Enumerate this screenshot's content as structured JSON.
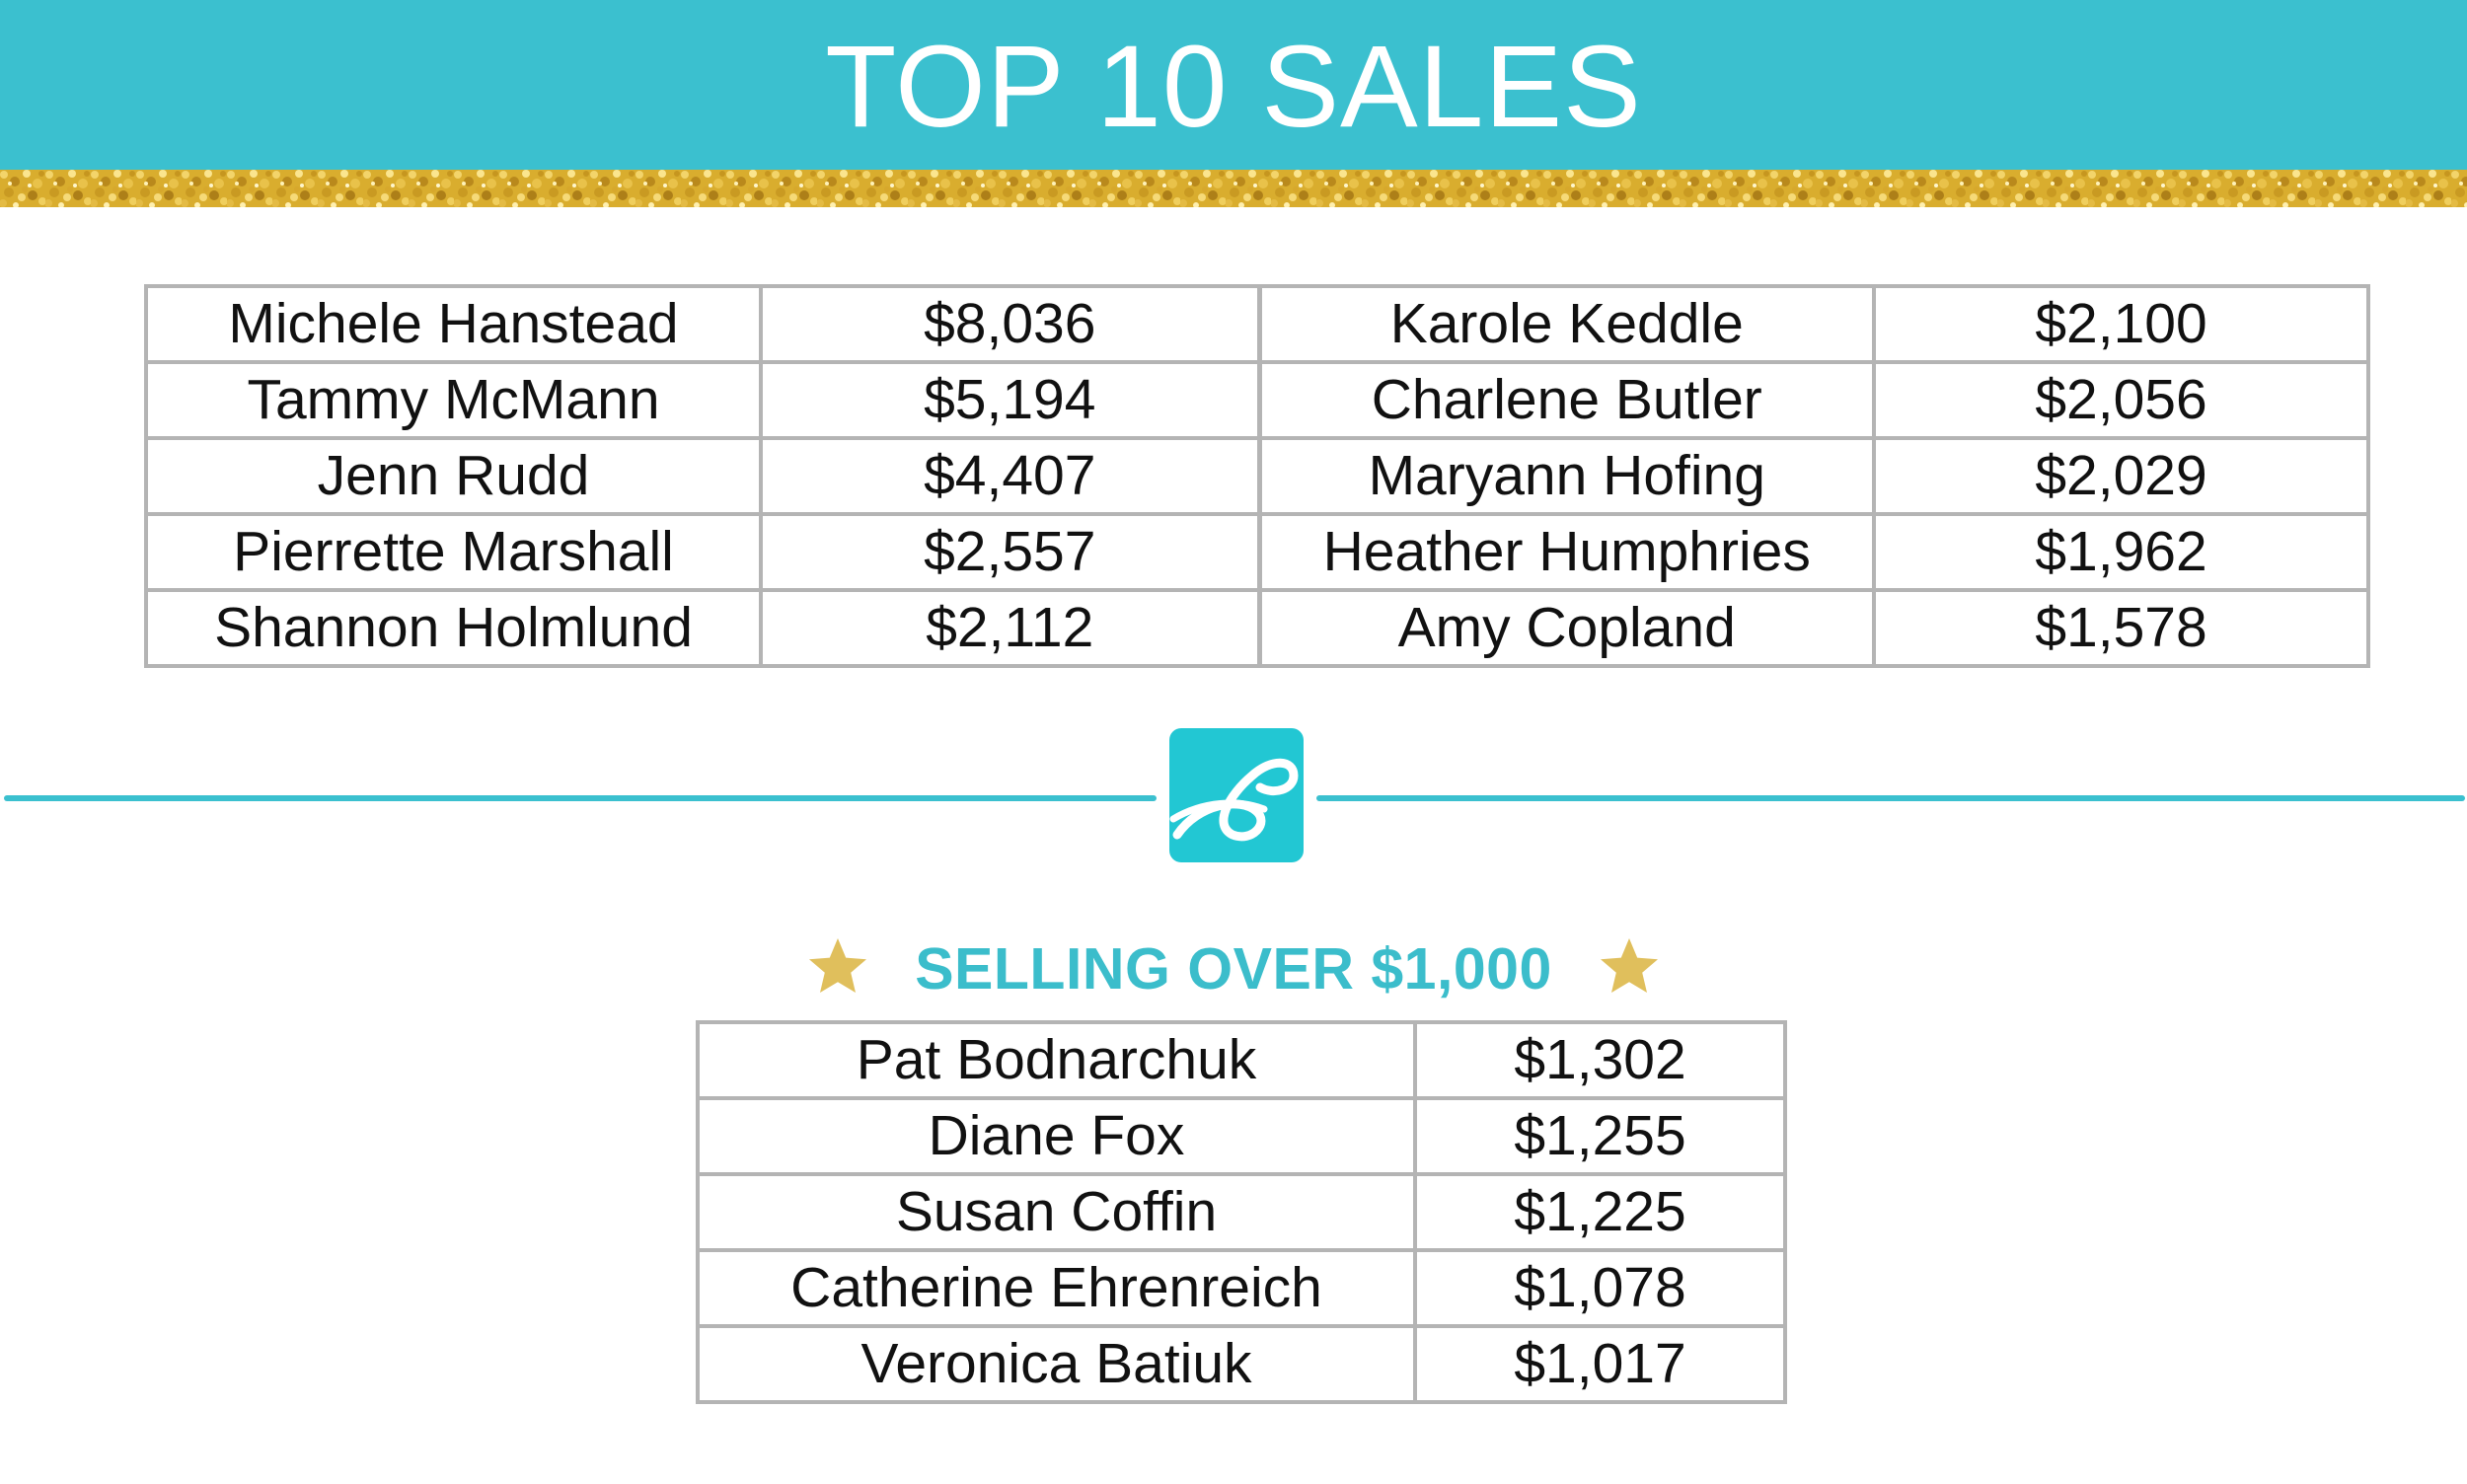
{
  "header": {
    "title": "TOP 10 SALES"
  },
  "top10": {
    "left": [
      {
        "name": "Michele Hanstead",
        "amount": "$8,036"
      },
      {
        "name": "Tammy McMann",
        "amount": "$5,194"
      },
      {
        "name": "Jenn Rudd",
        "amount": "$4,407"
      },
      {
        "name": "Pierrette Marshall",
        "amount": "$2,557"
      },
      {
        "name": "Shannon Holmlund",
        "amount": "$2,112"
      }
    ],
    "right": [
      {
        "name": "Karole Keddle",
        "amount": "$2,100"
      },
      {
        "name": "Charlene Butler",
        "amount": "$2,056"
      },
      {
        "name": "Maryann Hofing",
        "amount": "$2,029"
      },
      {
        "name": "Heather Humphries",
        "amount": "$1,962"
      },
      {
        "name": "Amy Copland",
        "amount": "$1,578"
      }
    ]
  },
  "divider": {
    "logo_icon": "brand-logo-icon"
  },
  "over1000": {
    "heading": "SELLING OVER $1,000",
    "star_icon": "star-icon",
    "rows": [
      {
        "name": "Pat Bodnarchuk",
        "amount": "$1,302"
      },
      {
        "name": "Diane Fox",
        "amount": "$1,255"
      },
      {
        "name": "Susan Coffin",
        "amount": "$1,225"
      },
      {
        "name": "Catherine Ehrenreich",
        "amount": "$1,078"
      },
      {
        "name": "Veronica Batiuk",
        "amount": "$1,017"
      }
    ]
  },
  "colors": {
    "header_bg": "#3bc0cf",
    "accent": "#3bbdcb",
    "gold": "#e0bf5c",
    "table_border": "#b4b4b4",
    "text": "#111111"
  }
}
